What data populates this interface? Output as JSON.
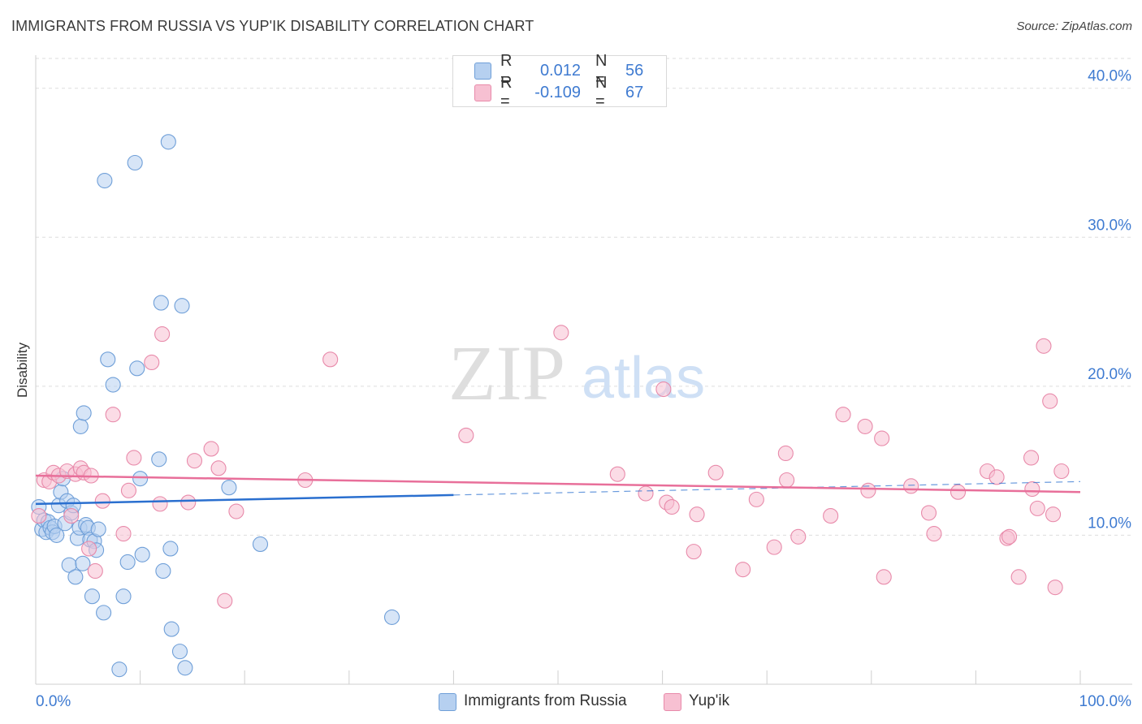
{
  "title": "IMMIGRANTS FROM RUSSIA VS YUP'IK DISABILITY CORRELATION CHART",
  "source": "Source: ZipAtlas.com",
  "watermark": {
    "zip": "ZIP",
    "atlas": "atlas"
  },
  "legend_top": {
    "rows": [
      {
        "r_label": "R =",
        "r_value": "0.012",
        "n_label": "N =",
        "n_value": "56"
      },
      {
        "r_label": "R =",
        "r_value": "-0.109",
        "n_label": "N =",
        "n_value": "67"
      }
    ]
  },
  "legend_bottom": {
    "items": [
      "Immigrants from Russia",
      "Yup'ik"
    ]
  },
  "colors": {
    "blue_fill": "#b6d0f0",
    "blue_stroke": "#6f9fd8",
    "blue_line": "#2a6fcf",
    "pink_fill": "#f7c0d2",
    "pink_stroke": "#e88aaa",
    "pink_line": "#e86f9a",
    "tick_label": "#3f7bd1",
    "grid": "#dddddd"
  },
  "chart_data": {
    "type": "scatter",
    "title": "IMMIGRANTS FROM RUSSIA VS YUP'IK DISABILITY CORRELATION CHART",
    "xlabel": "",
    "ylabel": "Disability",
    "xlim": [
      0,
      100
    ],
    "ylim": [
      0,
      42
    ],
    "x_tick_labels": [
      "0.0%",
      "100.0%"
    ],
    "y_ticks": [
      10,
      20,
      30,
      40
    ],
    "y_tick_labels": [
      "10.0%",
      "20.0%",
      "30.0%",
      "40.0%"
    ],
    "grid": true,
    "legend_position": "bottom",
    "series": [
      {
        "name": "Immigrants from Russia",
        "color": "#6f9fd8",
        "trend": {
          "x": [
            0,
            40
          ],
          "y": [
            12.1,
            12.7
          ],
          "dashed_to": [
            100,
            13.6
          ]
        },
        "points": [
          [
            0.3,
            11.9
          ],
          [
            0.6,
            10.4
          ],
          [
            0.8,
            11.0
          ],
          [
            1.0,
            10.2
          ],
          [
            1.2,
            10.9
          ],
          [
            1.4,
            10.5
          ],
          [
            1.6,
            10.2
          ],
          [
            1.8,
            10.6
          ],
          [
            2.0,
            10.0
          ],
          [
            2.2,
            12.0
          ],
          [
            2.4,
            12.9
          ],
          [
            2.6,
            13.8
          ],
          [
            2.8,
            10.8
          ],
          [
            3.0,
            12.3
          ],
          [
            3.2,
            8.0
          ],
          [
            3.4,
            11.5
          ],
          [
            3.6,
            12.0
          ],
          [
            3.8,
            7.2
          ],
          [
            4.0,
            9.8
          ],
          [
            4.2,
            10.5
          ],
          [
            4.3,
            17.3
          ],
          [
            4.5,
            8.1
          ],
          [
            4.6,
            18.2
          ],
          [
            4.8,
            10.7
          ],
          [
            5.0,
            10.5
          ],
          [
            5.2,
            9.7
          ],
          [
            5.4,
            5.9
          ],
          [
            5.6,
            9.6
          ],
          [
            5.8,
            9.0
          ],
          [
            6.0,
            10.4
          ],
          [
            6.5,
            4.8
          ],
          [
            6.6,
            33.8
          ],
          [
            6.9,
            21.8
          ],
          [
            7.4,
            20.1
          ],
          [
            8.0,
            1.0
          ],
          [
            8.4,
            5.9
          ],
          [
            8.8,
            8.2
          ],
          [
            9.5,
            35.0
          ],
          [
            9.7,
            21.2
          ],
          [
            10.0,
            13.8
          ],
          [
            10.2,
            8.7
          ],
          [
            11.8,
            15.1
          ],
          [
            12.0,
            25.6
          ],
          [
            12.2,
            7.6
          ],
          [
            12.7,
            36.4
          ],
          [
            12.9,
            9.1
          ],
          [
            13.0,
            3.7
          ],
          [
            13.8,
            2.2
          ],
          [
            14.0,
            25.4
          ],
          [
            14.3,
            1.1
          ],
          [
            18.5,
            13.2
          ],
          [
            21.5,
            9.4
          ],
          [
            34.1,
            4.5
          ]
        ]
      },
      {
        "name": "Yup'ik",
        "color": "#e88aaa",
        "trend": {
          "x": [
            0,
            100
          ],
          "y": [
            14.0,
            12.9
          ]
        },
        "points": [
          [
            0.3,
            11.3
          ],
          [
            0.8,
            13.7
          ],
          [
            1.3,
            13.6
          ],
          [
            1.7,
            14.2
          ],
          [
            2.2,
            14.0
          ],
          [
            3.0,
            14.3
          ],
          [
            3.4,
            11.3
          ],
          [
            3.8,
            14.1
          ],
          [
            4.3,
            14.5
          ],
          [
            4.6,
            14.2
          ],
          [
            5.1,
            9.1
          ],
          [
            5.3,
            14.0
          ],
          [
            5.7,
            7.6
          ],
          [
            6.4,
            12.3
          ],
          [
            7.4,
            18.1
          ],
          [
            8.4,
            10.1
          ],
          [
            8.9,
            13.0
          ],
          [
            9.4,
            15.2
          ],
          [
            11.1,
            21.6
          ],
          [
            11.9,
            12.1
          ],
          [
            12.1,
            23.5
          ],
          [
            14.6,
            12.2
          ],
          [
            15.2,
            15.0
          ],
          [
            16.8,
            15.8
          ],
          [
            17.5,
            14.5
          ],
          [
            18.1,
            5.6
          ],
          [
            19.2,
            11.6
          ],
          [
            25.8,
            13.7
          ],
          [
            28.2,
            21.8
          ],
          [
            41.2,
            16.7
          ],
          [
            50.3,
            23.6
          ],
          [
            55.7,
            14.1
          ],
          [
            58.4,
            12.8
          ],
          [
            60.1,
            19.8
          ],
          [
            60.4,
            12.2
          ],
          [
            60.9,
            11.9
          ],
          [
            63.0,
            8.9
          ],
          [
            63.3,
            11.4
          ],
          [
            65.1,
            14.2
          ],
          [
            67.7,
            7.7
          ],
          [
            69.0,
            12.4
          ],
          [
            70.7,
            9.2
          ],
          [
            71.8,
            15.5
          ],
          [
            71.9,
            13.7
          ],
          [
            73.0,
            9.9
          ],
          [
            76.1,
            11.3
          ],
          [
            77.3,
            18.1
          ],
          [
            79.4,
            17.3
          ],
          [
            79.7,
            13.0
          ],
          [
            81.0,
            16.5
          ],
          [
            81.2,
            7.2
          ],
          [
            83.8,
            13.3
          ],
          [
            85.5,
            11.5
          ],
          [
            86.0,
            10.1
          ],
          [
            88.3,
            12.9
          ],
          [
            91.1,
            14.3
          ],
          [
            92.0,
            13.9
          ],
          [
            93.0,
            9.8
          ],
          [
            93.2,
            9.9
          ],
          [
            94.1,
            7.2
          ],
          [
            95.3,
            15.2
          ],
          [
            95.4,
            13.1
          ],
          [
            95.9,
            11.8
          ],
          [
            96.5,
            22.7
          ],
          [
            97.1,
            19.0
          ],
          [
            97.4,
            11.4
          ],
          [
            97.6,
            6.5
          ],
          [
            98.2,
            14.3
          ]
        ]
      }
    ]
  }
}
